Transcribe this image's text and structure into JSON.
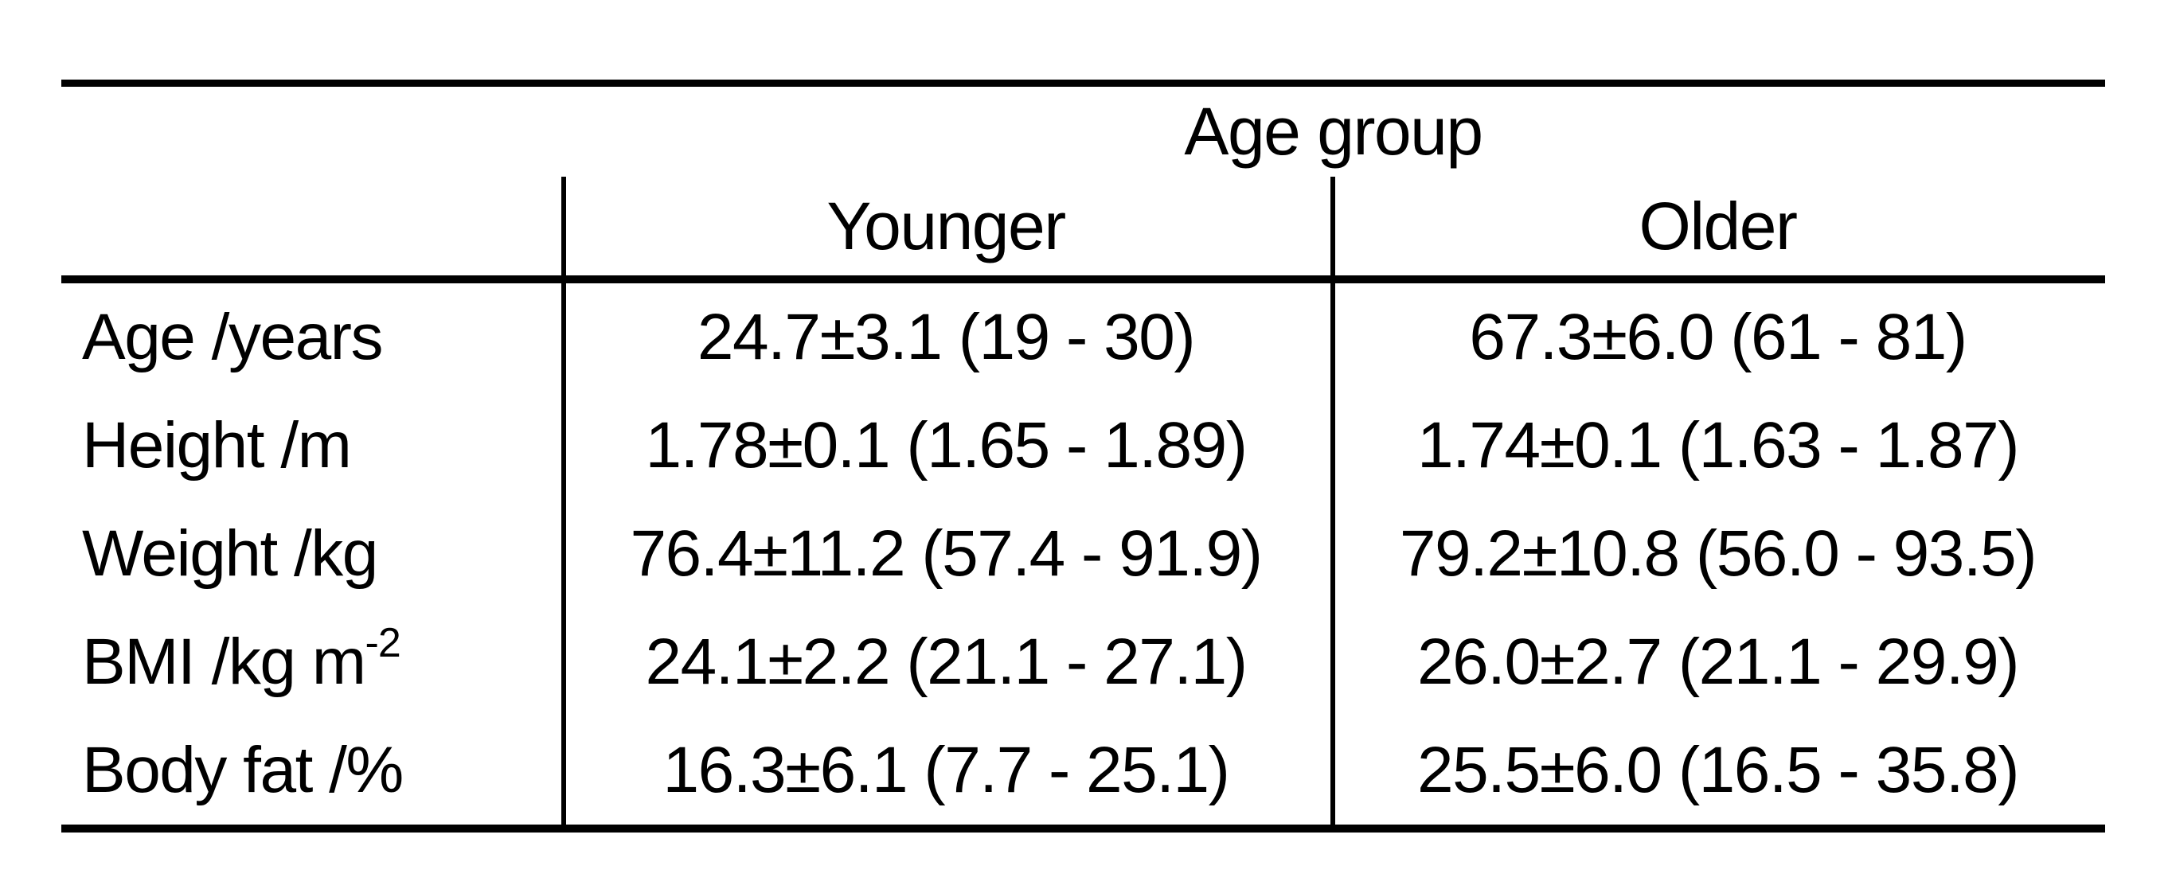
{
  "table": {
    "span_header": "Age group",
    "col_headers": [
      "Younger",
      "Older"
    ],
    "rows": [
      {
        "label": "Age /years",
        "label_sup": "",
        "younger": "24.7±3.1 (19 - 30)",
        "older": "67.3±6.0 (61 - 81)"
      },
      {
        "label": "Height /m",
        "label_sup": "",
        "younger": "1.78±0.1 (1.65 - 1.89)",
        "older": "1.74±0.1 (1.63 - 1.87)"
      },
      {
        "label": "Weight /kg",
        "label_sup": "",
        "younger": "76.4±11.2 (57.4 - 91.9)",
        "older": "79.2±10.8 (56.0 - 93.5)"
      },
      {
        "label": "BMI /kg m",
        "label_sup": "-2",
        "younger": "24.1±2.2 (21.1 - 27.1)",
        "older": "26.0±2.7 (21.1 - 29.9)"
      },
      {
        "label": "Body fat /%",
        "label_sup": "",
        "younger": "16.3±6.1 (7.7 - 25.1)",
        "older": "25.5±6.0 (16.5 - 35.8)"
      }
    ],
    "colors": {
      "text": "#000000",
      "rule": "#000000",
      "background": "#ffffff"
    }
  },
  "chart_data": {
    "type": "table",
    "span_header": "Age group",
    "columns": [
      "",
      "Younger",
      "Older"
    ],
    "rows": [
      [
        "Age /years",
        "24.7±3.1 (19 - 30)",
        "67.3±6.0 (61 - 81)"
      ],
      [
        "Height /m",
        "1.78±0.1 (1.65 - 1.89)",
        "1.74±0.1 (1.63 - 1.87)"
      ],
      [
        "Weight /kg",
        "76.4±11.2 (57.4 - 91.9)",
        "79.2±10.8 (56.0 - 93.5)"
      ],
      [
        "BMI /kg m⁻²",
        "24.1±2.2 (21.1 - 27.1)",
        "26.0±2.7 (21.1 - 29.9)"
      ],
      [
        "Body fat /%",
        "16.3±6.1 (7.7 - 25.1)",
        "25.5±6.0 (16.5 - 35.8)"
      ]
    ]
  }
}
